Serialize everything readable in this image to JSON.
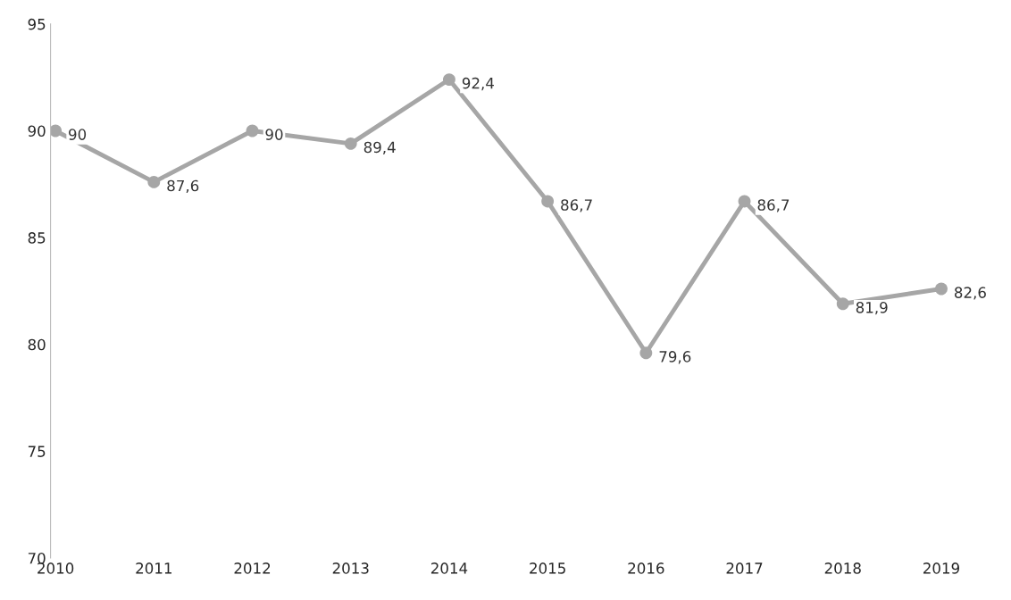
{
  "chart_data": {
    "type": "line",
    "categories": [
      "2010",
      "2011",
      "2012",
      "2013",
      "2014",
      "2015",
      "2016",
      "2017",
      "2018",
      "2019"
    ],
    "series": [
      {
        "color": "#a6a6a6",
        "values": [
          90,
          87.6,
          90,
          89.4,
          92.4,
          86.7,
          79.6,
          86.7,
          81.9,
          82.6
        ],
        "value_labels": [
          "90",
          "87,6",
          "90",
          "89,4",
          "92,4",
          "86,7",
          "79,6",
          "86,7",
          "81,9",
          "82,6"
        ]
      }
    ],
    "ylim": [
      70,
      95
    ],
    "yticks": [
      70,
      75,
      80,
      85,
      90,
      95
    ],
    "marker": "circle",
    "line_style": "solid",
    "grid": false,
    "legend": false
  }
}
